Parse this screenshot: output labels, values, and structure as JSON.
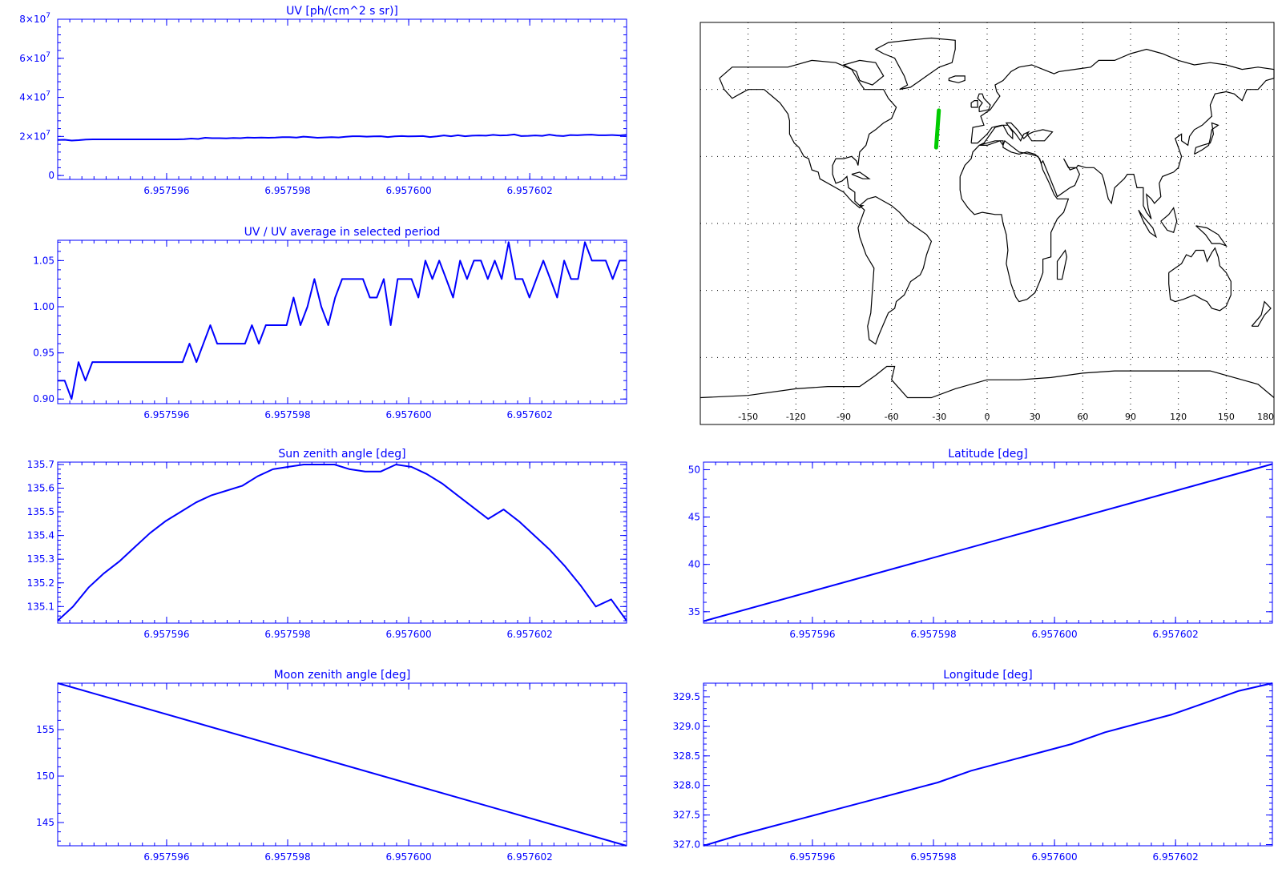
{
  "colors": {
    "plot": "#0000ff",
    "track": "#00cc00",
    "map": "#000000"
  },
  "chart_data": [
    {
      "id": "uv",
      "type": "line",
      "title": "UV [ph/(cm^2 s sr)]",
      "xlim": [
        6.9575942,
        6.9576036
      ],
      "ylim": [
        -2000000,
        80000000
      ],
      "xticks": [
        "6.957596",
        "6.957598",
        "6.957600",
        "6.957602"
      ],
      "yticks": [
        {
          "value": 0,
          "base": "0",
          "exp": ""
        },
        {
          "value": 20000000,
          "base": "2×10",
          "exp": "7"
        },
        {
          "value": 40000000,
          "base": "4×10",
          "exp": "7"
        },
        {
          "value": 60000000,
          "base": "6×10",
          "exp": "7"
        },
        {
          "value": 80000000,
          "base": "8×10",
          "exp": "7"
        }
      ],
      "series": [
        {
          "values": [
            18200000,
            18300000,
            17900000,
            18100000,
            18400000,
            18500000,
            18500000,
            18500000,
            18500000,
            18500000,
            18500000,
            18500000,
            18500000,
            18500000,
            18500000,
            18500000,
            18500000,
            18500000,
            18600000,
            18900000,
            18700000,
            19300000,
            19100000,
            19100000,
            19000000,
            19200000,
            19100000,
            19400000,
            19300000,
            19400000,
            19300000,
            19400000,
            19600000,
            19600000,
            19400000,
            19900000,
            19600000,
            19300000,
            19500000,
            19600000,
            19500000,
            19800000,
            20100000,
            20100000,
            19900000,
            20000000,
            20100000,
            19700000,
            20000000,
            20200000,
            20000000,
            20100000,
            20200000,
            19700000,
            20000000,
            20500000,
            20100000,
            20600000,
            20100000,
            20400000,
            20500000,
            20400000,
            20800000,
            20500000,
            20600000,
            21000000,
            20200000,
            20300000,
            20500000,
            20300000,
            20900000,
            20400000,
            20200000,
            20700000,
            20600000,
            20800000,
            20900000,
            20600000,
            20600000,
            20700000,
            20500000,
            20800000
          ]
        }
      ]
    },
    {
      "id": "uv-ratio",
      "type": "line",
      "title": "UV / UV average in selected period",
      "xlim": [
        6.9575942,
        6.9576036
      ],
      "ylim": [
        0.895,
        1.072
      ],
      "xticks": [
        "6.957596",
        "6.957598",
        "6.957600",
        "6.957602"
      ],
      "yticks": [
        "0.90",
        "0.95",
        "1.00",
        "1.05"
      ],
      "series": [
        {
          "values": [
            0.92,
            0.92,
            0.9,
            0.94,
            0.92,
            0.94,
            0.94,
            0.94,
            0.94,
            0.94,
            0.94,
            0.94,
            0.94,
            0.94,
            0.94,
            0.94,
            0.94,
            0.94,
            0.94,
            0.96,
            0.94,
            0.96,
            0.98,
            0.96,
            0.96,
            0.96,
            0.96,
            0.96,
            0.98,
            0.96,
            0.98,
            0.98,
            0.98,
            0.98,
            1.01,
            0.98,
            1.0,
            1.03,
            1.0,
            0.98,
            1.01,
            1.03,
            1.03,
            1.03,
            1.03,
            1.01,
            1.01,
            1.03,
            0.98,
            1.03,
            1.03,
            1.03,
            1.01,
            1.05,
            1.03,
            1.05,
            1.03,
            1.01,
            1.05,
            1.03,
            1.05,
            1.05,
            1.03,
            1.05,
            1.03,
            1.07,
            1.03,
            1.03,
            1.01,
            1.03,
            1.05,
            1.03,
            1.01,
            1.05,
            1.03,
            1.03,
            1.07,
            1.05,
            1.05,
            1.05,
            1.03,
            1.05,
            1.05
          ]
        }
      ]
    },
    {
      "id": "sun-zenith",
      "type": "line",
      "title": "Sun zenith angle [deg]",
      "xlim": [
        6.9575942,
        6.9576036
      ],
      "ylim": [
        135.03,
        135.71
      ],
      "xticks": [
        "6.957596",
        "6.957598",
        "6.957600",
        "6.957602"
      ],
      "yticks": [
        "135.1",
        "135.2",
        "135.3",
        "135.4",
        "135.5",
        "135.6",
        "135.7"
      ],
      "series": [
        {
          "values": [
            135.04,
            135.1,
            135.18,
            135.24,
            135.29,
            135.35,
            135.41,
            135.46,
            135.5,
            135.54,
            135.57,
            135.59,
            135.61,
            135.65,
            135.68,
            135.69,
            135.7,
            135.7,
            135.7,
            135.68,
            135.67,
            135.67,
            135.7,
            135.69,
            135.66,
            135.62,
            135.57,
            135.52,
            135.47,
            135.51,
            135.46,
            135.4,
            135.34,
            135.27,
            135.19,
            135.1,
            135.13,
            135.04
          ]
        }
      ]
    },
    {
      "id": "latitude",
      "type": "line",
      "title": "Latitude [deg]",
      "xlim": [
        6.9575942,
        6.9576036
      ],
      "ylim": [
        33.8,
        50.8
      ],
      "xticks": [
        "6.957596",
        "6.957598",
        "6.957600",
        "6.957602"
      ],
      "yticks": [
        "35",
        "40",
        "45",
        "50"
      ],
      "series": [
        {
          "values": [
            34.0,
            50.6
          ]
        }
      ]
    },
    {
      "id": "moon-zenith",
      "type": "line",
      "title": "Moon zenith angle [deg]",
      "xlim": [
        6.9575942,
        6.9576036
      ],
      "ylim": [
        142.5,
        160.0
      ],
      "xticks": [
        "6.957596",
        "6.957598",
        "6.957600",
        "6.957602"
      ],
      "yticks": [
        "145",
        "150",
        "155"
      ],
      "series": [
        {
          "values": [
            160.0,
            142.5
          ]
        }
      ]
    },
    {
      "id": "longitude",
      "type": "line",
      "title": "Longitude [deg]",
      "xlim": [
        6.9575942,
        6.9576036
      ],
      "ylim": [
        326.98,
        329.73
      ],
      "xticks": [
        "6.957596",
        "6.957598",
        "6.957600",
        "6.957602"
      ],
      "yticks": [
        "327.0",
        "327.5",
        "328.0",
        "328.5",
        "329.0",
        "329.5"
      ],
      "series": [
        {
          "values": [
            326.98,
            327.15,
            327.3,
            327.45,
            327.6,
            327.75,
            327.9,
            328.05,
            328.25,
            328.4,
            328.55,
            328.7,
            328.9,
            329.05,
            329.2,
            329.4,
            329.6,
            329.73
          ]
        }
      ]
    },
    {
      "id": "world-map",
      "type": "map",
      "projection": "cylindrical",
      "xlim": [
        -180,
        180
      ],
      "ylim": [
        -90,
        90
      ],
      "xticks": [
        "-150",
        "-120",
        "-90",
        "-60",
        "-30",
        "0",
        "30",
        "60",
        "90",
        "120",
        "150",
        "180"
      ],
      "track": {
        "lon_start": -32.0,
        "lat_start": 34.0,
        "lon_end": -30.3,
        "lat_end": 50.6
      }
    }
  ]
}
